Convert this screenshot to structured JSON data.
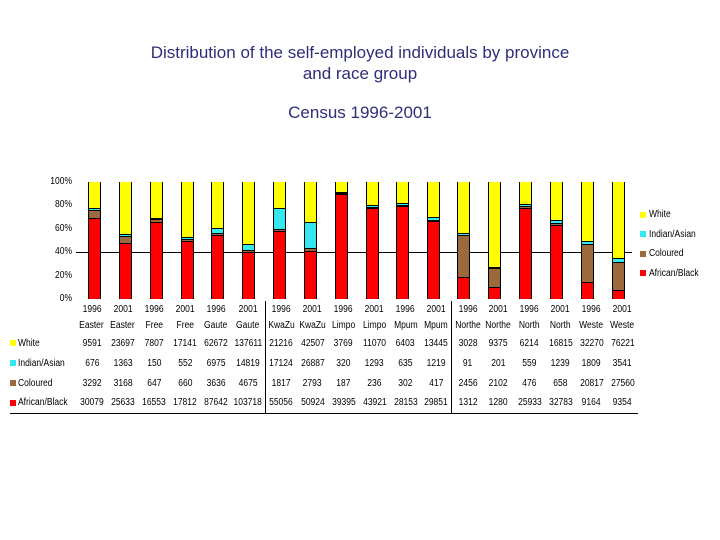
{
  "title": {
    "line1": "Distribution of the self-employed individuals  by province",
    "line2": "and race group",
    "line3": "Census 1996-2001"
  },
  "yaxis": {
    "ticks": [
      "100%",
      "80%",
      "60%",
      "40%",
      "20%",
      "0%"
    ]
  },
  "legend": [
    {
      "label": "White",
      "color": "#ffff00"
    },
    {
      "label": "Indian/Asian",
      "color": "#33e8ee"
    },
    {
      "label": "Coloured",
      "color": "#9b6a3c"
    },
    {
      "label": "African/Black",
      "color": "#ff0000"
    }
  ],
  "table": {
    "years": [
      "1996",
      "2001",
      "1996",
      "2001",
      "1996",
      "2001",
      "1996",
      "2001",
      "1996",
      "2001",
      "1996",
      "2001",
      "1996",
      "2001",
      "1996",
      "2001",
      "1996",
      "2001"
    ],
    "provinces": [
      "Easter",
      "Easter",
      "Free",
      "Free",
      "Gaute",
      "Gaute",
      "KwaZu",
      "KwaZu",
      "Limpo",
      "Limpo",
      "Mpum",
      "Mpum",
      "Northe",
      "Northe",
      "North",
      "North",
      "Weste",
      "Weste"
    ],
    "rows": [
      {
        "label": "White",
        "values": [
          "9591",
          "23697",
          "7807",
          "17141",
          "62672",
          "137611",
          "21216",
          "42507",
          "3769",
          "11070",
          "6403",
          "13445",
          "3028",
          "9375",
          "6214",
          "16815",
          "32270",
          "76221"
        ]
      },
      {
        "label": "Indian/Asian",
        "values": [
          "676",
          "1363",
          "150",
          "552",
          "6975",
          "14819",
          "17124",
          "26887",
          "320",
          "1293",
          "635",
          "1219",
          "91",
          "201",
          "559",
          "1239",
          "1809",
          "3541"
        ]
      },
      {
        "label": "Coloured",
        "values": [
          "3292",
          "3168",
          "647",
          "660",
          "3636",
          "4675",
          "1817",
          "2793",
          "187",
          "236",
          "302",
          "417",
          "2456",
          "2102",
          "476",
          "658",
          "20817",
          "27560"
        ]
      },
      {
        "label": "African/Black",
        "values": [
          "30079",
          "25633",
          "16553",
          "17812",
          "87642",
          "103718",
          "55056",
          "50924",
          "39395",
          "43921",
          "28153",
          "29851",
          "1312",
          "1280",
          "25933",
          "32783",
          "9164",
          "9354"
        ]
      }
    ]
  },
  "chart_data": {
    "type": "bar",
    "stacked": true,
    "normalized": "percent",
    "title": "Distribution of the self-employed individuals by province and race group — Census 1996-2001",
    "xlabel": "",
    "ylabel": "",
    "ylim": [
      0,
      100
    ],
    "yticks": [
      "0%",
      "20%",
      "40%",
      "60%",
      "80%",
      "100%"
    ],
    "legend_position": "right",
    "categories": [
      "1996 Easter",
      "2001 Easter",
      "1996 Free",
      "2001 Free",
      "1996 Gaute",
      "2001 Gaute",
      "1996 KwaZu",
      "2001 KwaZu",
      "1996 Limpo",
      "2001 Limpo",
      "1996 Mpum",
      "2001 Mpum",
      "1996 Northe",
      "2001 Northe",
      "1996 North",
      "2001 North",
      "1996 Weste",
      "2001 Weste"
    ],
    "series": [
      {
        "name": "African/Black",
        "color": "#ff0000",
        "values": [
          30079,
          25633,
          16553,
          17812,
          87642,
          103718,
          55056,
          50924,
          39395,
          43921,
          28153,
          29851,
          1312,
          1280,
          25933,
          32783,
          9164,
          9354
        ]
      },
      {
        "name": "Coloured",
        "color": "#9b6a3c",
        "values": [
          3292,
          3168,
          647,
          660,
          3636,
          4675,
          1817,
          2793,
          187,
          236,
          302,
          417,
          2456,
          2102,
          476,
          658,
          20817,
          27560
        ]
      },
      {
        "name": "Indian/Asian",
        "color": "#33e8ee",
        "values": [
          676,
          1363,
          150,
          552,
          6975,
          14819,
          17124,
          26887,
          320,
          1293,
          635,
          1219,
          91,
          201,
          559,
          1239,
          1809,
          3541
        ]
      },
      {
        "name": "White",
        "color": "#ffff00",
        "values": [
          9591,
          23697,
          7807,
          17141,
          62672,
          137611,
          21216,
          42507,
          3769,
          11070,
          6403,
          13445,
          3028,
          9375,
          6214,
          16815,
          32270,
          76221
        ]
      }
    ],
    "annotations": [
      "horizontal reference line at 40%"
    ]
  }
}
